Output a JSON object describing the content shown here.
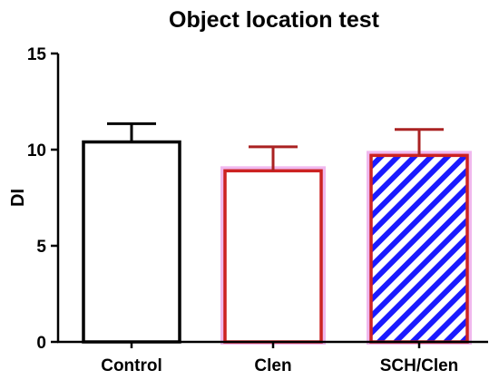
{
  "chart_data": {
    "type": "bar",
    "title": "Object location test",
    "xlabel": "",
    "ylabel": "DI",
    "ylim": [
      0,
      15
    ],
    "yticks": [
      0,
      5,
      10,
      15
    ],
    "categories": [
      "Control",
      "Clen",
      "SCH/Clen"
    ],
    "values": [
      10.4,
      8.9,
      9.7
    ],
    "errors": [
      0.95,
      1.25,
      1.35
    ],
    "grid": false,
    "legend": "none",
    "bar_styles": [
      {
        "edge": "#000000",
        "fill": "#ffffff",
        "pattern": "none"
      },
      {
        "edge": "#cc2222",
        "fill": "#ffffff",
        "pattern": "none"
      },
      {
        "edge": "#cc2222",
        "fill": "#ffffff",
        "pattern": "diagonal-hatch",
        "hatch_color": "#1a1aff"
      }
    ],
    "errorbar_colors": [
      "#000000",
      "#aa2222",
      "#aa2222"
    ]
  }
}
